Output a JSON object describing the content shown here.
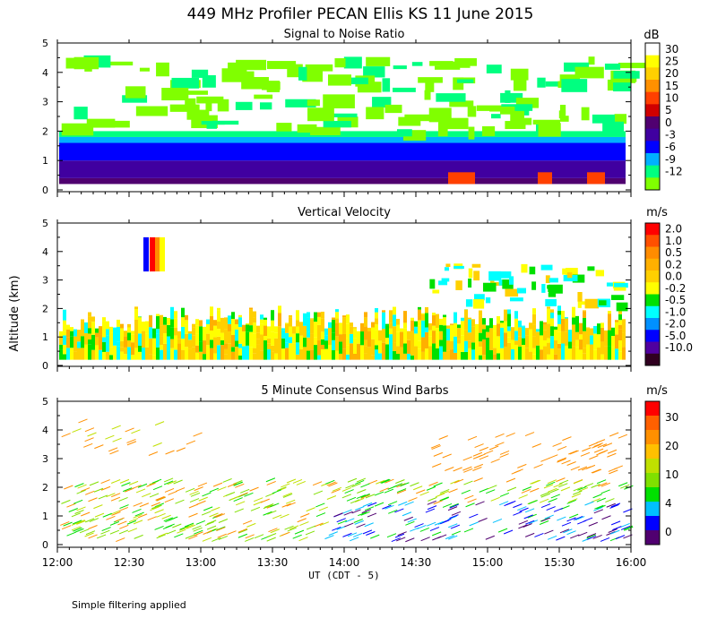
{
  "main_title": "449 MHz Profiler PECAN Ellis KS 11 June 2015",
  "y_label": "Altitude (km)",
  "x_label": "UT  (CDT - 5)",
  "x_ticks": [
    "12:00",
    "12:30",
    "13:00",
    "13:30",
    "14:00",
    "14:30",
    "15:00",
    "15:30",
    "16:00"
  ],
  "y_ticks": [
    "0",
    "1",
    "2",
    "3",
    "4",
    "5"
  ],
  "footer_note": "Simple filtering applied",
  "chart_data": [
    {
      "type": "heatmap",
      "title": "Signal to Noise Ratio",
      "units": "dB",
      "xlim": [
        "12:00",
        "16:00"
      ],
      "ylim": [
        0,
        5
      ],
      "colorbar": {
        "labels": [
          "30",
          "25",
          "20",
          "15",
          "10",
          "5",
          "0",
          "-3",
          "-6",
          "-9",
          "-12"
        ],
        "colors": [
          "#ffffff",
          "#ffff00",
          "#ffd000",
          "#ff9000",
          "#ff4000",
          "#d00000",
          "#500070",
          "#4000a0",
          "#0000ff",
          "#00b0ff",
          "#00ff80",
          "#80ff00"
        ]
      },
      "layers": [
        {
          "from_km": 0.2,
          "to_km": 0.4,
          "color": "#500070"
        },
        {
          "from_km": 0.4,
          "to_km": 1.0,
          "color": "#4000a0"
        },
        {
          "from_km": 1.0,
          "to_km": 1.6,
          "color": "#0000ff"
        },
        {
          "from_km": 1.6,
          "to_km": 1.8,
          "color": "#00b0ff"
        },
        {
          "from_km": 1.8,
          "to_km": 2.0,
          "color": "#00ff80"
        }
      ]
    },
    {
      "type": "heatmap",
      "title": "Vertical Velocity",
      "units": "m/s",
      "xlim": [
        "12:00",
        "16:00"
      ],
      "ylim": [
        0,
        5
      ],
      "colorbar": {
        "labels": [
          "2.0",
          "1.0",
          "0.5",
          "0.2",
          "0.0",
          "-0.2",
          "-0.5",
          "-1.0",
          "-2.0",
          "-5.0",
          "-10.0"
        ],
        "colors": [
          "#ff0000",
          "#ff5000",
          "#ff8c00",
          "#ffb000",
          "#ffd000",
          "#ffff00",
          "#00e000",
          "#00ffff",
          "#0090ff",
          "#0000ff",
          "#5000a0",
          "#300020"
        ]
      },
      "layers": [
        {
          "from_km": 0.2,
          "to_km": 2.0,
          "color": "#ffd000"
        }
      ]
    },
    {
      "type": "scatter",
      "title": "5 Minute Consensus Wind Barbs",
      "units": "m/s",
      "xlim": [
        "12:00",
        "16:00"
      ],
      "ylim": [
        0,
        5
      ],
      "colorbar": {
        "labels": [
          "30",
          "20",
          "10",
          "4",
          "0"
        ],
        "colors": [
          "#ff0000",
          "#ff6000",
          "#ff9000",
          "#ffc000",
          "#c0e000",
          "#80e000",
          "#00e000",
          "#00c0ff",
          "#0000ff",
          "#500070"
        ]
      }
    }
  ]
}
